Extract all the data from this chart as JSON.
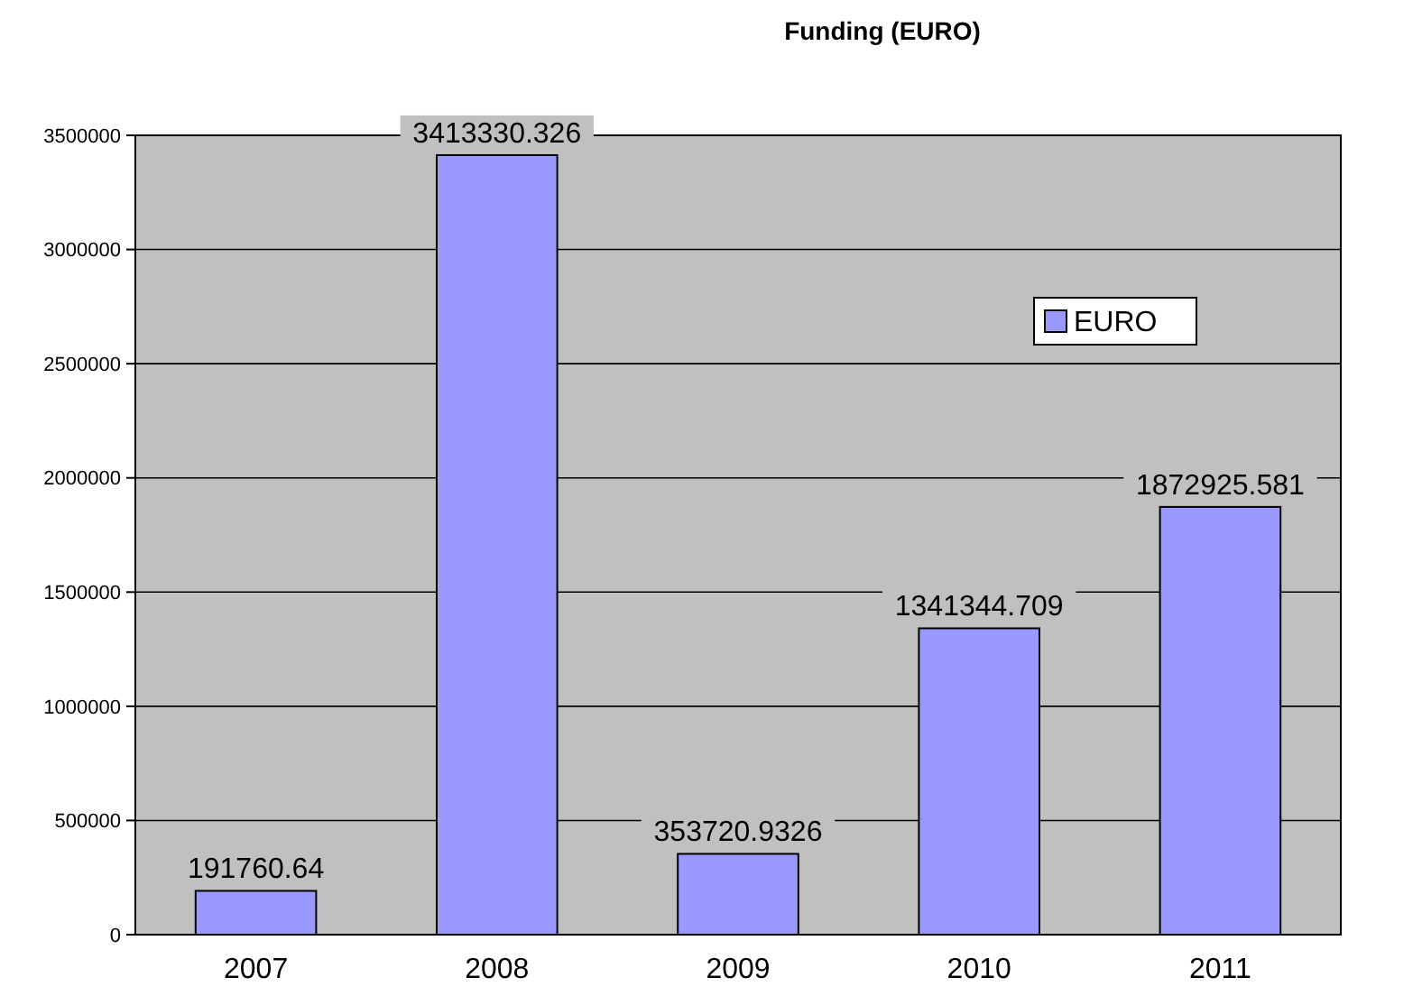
{
  "chart_data": {
    "type": "bar",
    "title": "Funding (EURO)",
    "categories": [
      "2007",
      "2008",
      "2009",
      "2010",
      "2011"
    ],
    "series": [
      {
        "name": "EURO",
        "color": "#9999ff",
        "values": [
          191760.64,
          3413330.326,
          353720.9326,
          1341344.709,
          1872925.581
        ]
      }
    ],
    "ylim": [
      0,
      3500000
    ],
    "yticks": [
      0,
      500000,
      1000000,
      1500000,
      2000000,
      2500000,
      3000000,
      3500000
    ],
    "grid": "y",
    "legend": "top right",
    "data_labels": true
  }
}
